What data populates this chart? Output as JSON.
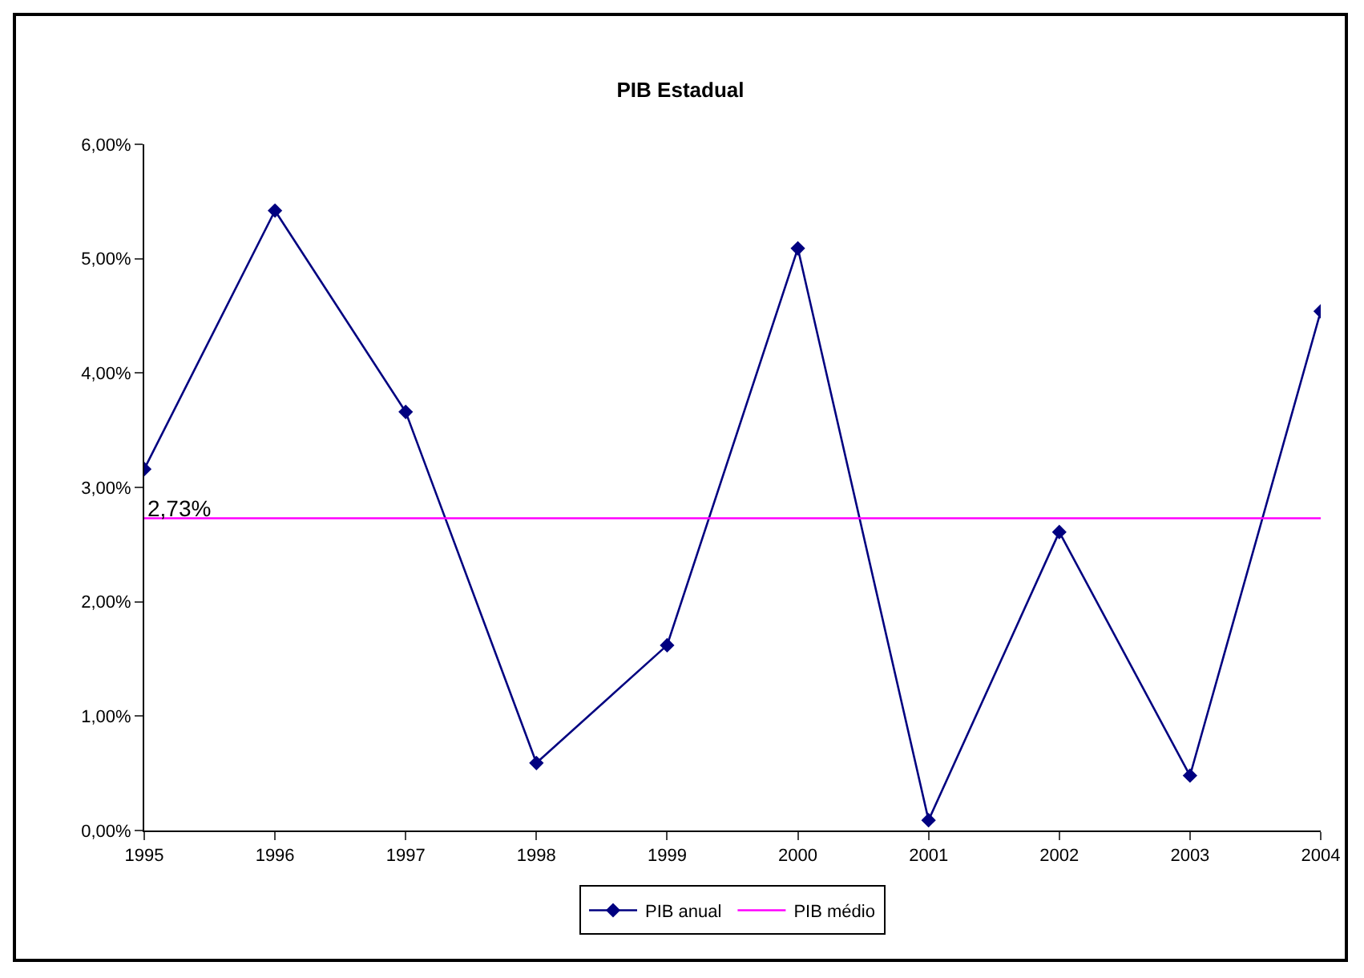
{
  "chart_data": {
    "type": "line",
    "title": "PIB Estadual",
    "categories": [
      "1995",
      "1996",
      "1997",
      "1998",
      "1999",
      "2000",
      "2001",
      "2002",
      "2003",
      "2004"
    ],
    "series": [
      {
        "name": "PIB anual",
        "color": "#000080",
        "marker": "diamond",
        "values": [
          3.16,
          5.42,
          3.66,
          0.59,
          1.62,
          5.09,
          0.09,
          2.61,
          0.48,
          4.54
        ]
      },
      {
        "name": "PIB médio",
        "color": "#ff00ff",
        "marker": "none",
        "values": [
          2.73,
          2.73,
          2.73,
          2.73,
          2.73,
          2.73,
          2.73,
          2.73,
          2.73,
          2.73
        ]
      }
    ],
    "annotations": [
      {
        "text": "2,73%",
        "x": "1995",
        "y": 2.73
      }
    ],
    "ylim": [
      0,
      6
    ],
    "yticks": [
      {
        "value": 0,
        "label": "0,00%"
      },
      {
        "value": 1,
        "label": "1,00%"
      },
      {
        "value": 2,
        "label": "2,00%"
      },
      {
        "value": 3,
        "label": "3,00%"
      },
      {
        "value": 4,
        "label": "4,00%"
      },
      {
        "value": 5,
        "label": "5,00%"
      },
      {
        "value": 6,
        "label": "6,00%"
      }
    ],
    "grid": false,
    "legend": "bottom",
    "line_style": "solid"
  }
}
